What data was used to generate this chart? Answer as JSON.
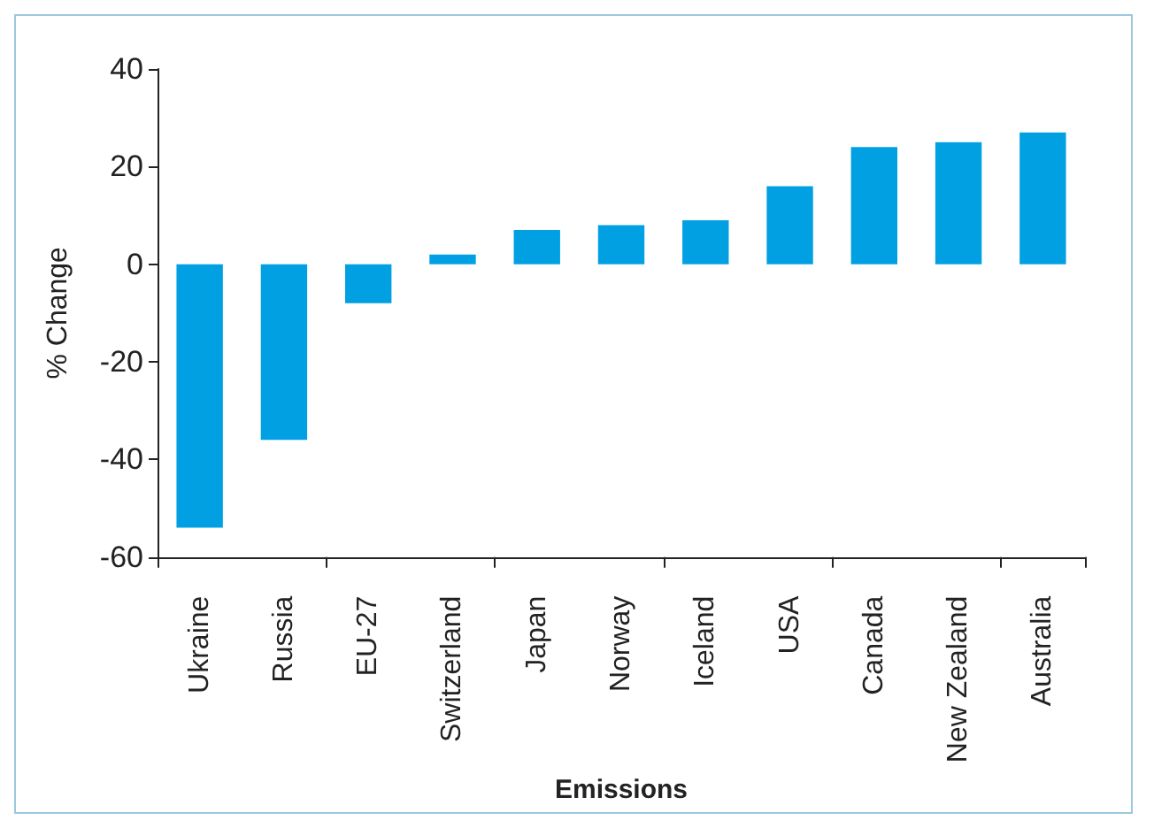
{
  "chart_data": {
    "type": "bar",
    "xlabel": "Emissions",
    "ylabel": "% Change",
    "categories": [
      "Ukraine",
      "Russia",
      "EU-27",
      "Switzerland",
      "Japan",
      "Norway",
      "Iceland",
      "USA",
      "Canada",
      "New Zealand",
      "Australia"
    ],
    "values": [
      -54,
      -36,
      -8,
      2,
      7,
      8,
      9,
      16,
      24,
      25,
      27
    ],
    "color": "#00a0e3",
    "ylim": [
      -60,
      40
    ],
    "yticks": [
      -60,
      -40,
      -20,
      0,
      20,
      40
    ]
  }
}
